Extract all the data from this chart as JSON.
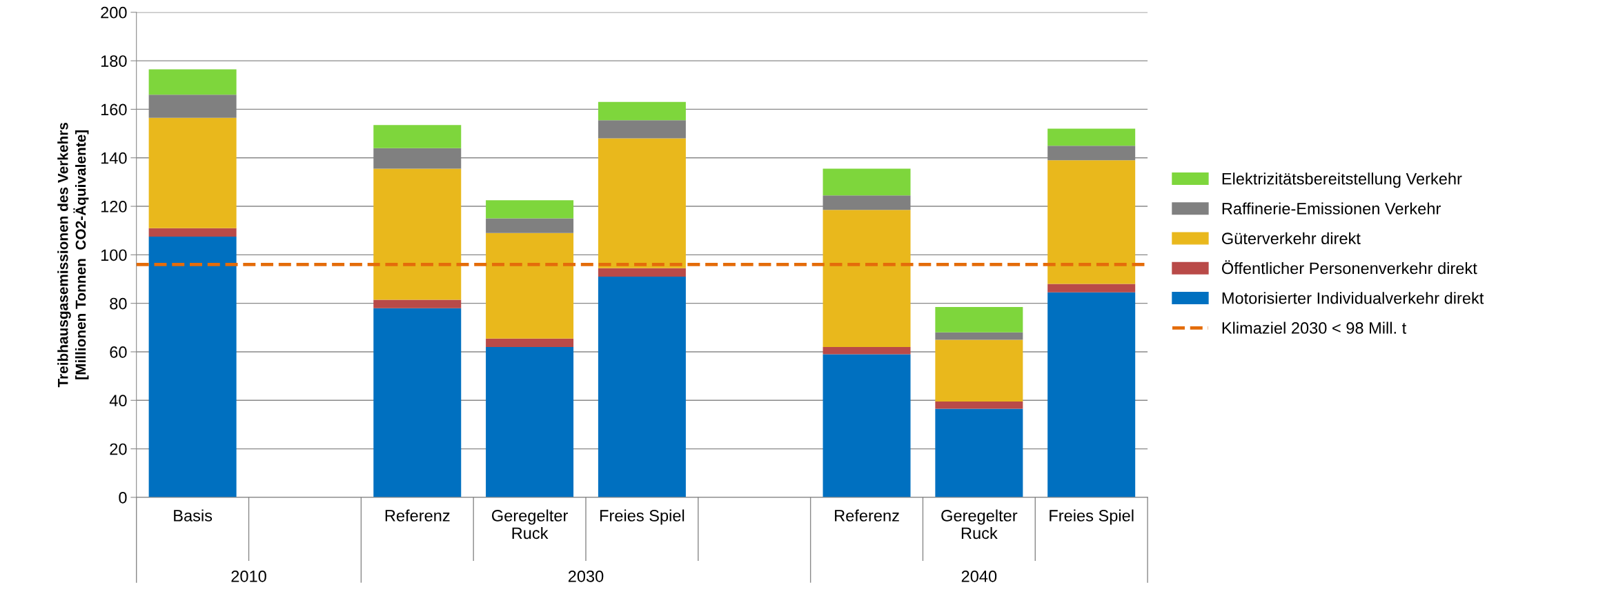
{
  "chart_data": {
    "type": "bar",
    "stacked": true,
    "ylabel": "Treibhausgasemissionen des Verkehrs\n[Millionen Tonnen  CO2-Äquivalente]",
    "categories": [
      "Basis",
      null,
      "Referenz",
      "Geregelter\nRuck",
      "Freies Spiel",
      null,
      "Referenz",
      "Geregelter\nRuck",
      "Freies Spiel"
    ],
    "annotations": [
      "2010",
      "2030",
      "2040"
    ],
    "series": [
      {
        "name": "Motorisierter Individualverkehr direkt",
        "color": "#0070c0",
        "values": [
          107.5,
          null,
          78,
          62,
          91,
          null,
          59,
          36.5,
          84.5
        ]
      },
      {
        "name": "Öffentlicher Personenverkehr direkt",
        "color": "#b94a48",
        "values": [
          3.5,
          null,
          3.5,
          3.5,
          3.5,
          null,
          3,
          3,
          3.5
        ]
      },
      {
        "name": "Güterverkehr direkt",
        "color": "#e9b81c",
        "values": [
          45.5,
          null,
          54,
          43.5,
          53.5,
          null,
          56.5,
          25.5,
          51
        ]
      },
      {
        "name": "Raffinerie-Emissionen Verkehr",
        "color": "#808080",
        "values": [
          9.5,
          null,
          8.5,
          6,
          7.5,
          null,
          6,
          3,
          6
        ]
      },
      {
        "name": "Elektrizitätsbereitstellung Verkehr",
        "color": "#7ed63c",
        "values": [
          10.5,
          null,
          9.5,
          7.5,
          7.5,
          null,
          11,
          10.5,
          7
        ]
      }
    ],
    "ref_lines": [
      {
        "axis": "y",
        "value": 96,
        "label": "Klimaziel 2030 < 98 Mill. t",
        "color": "#e46c0a",
        "line_style": "dashed"
      }
    ],
    "ylim": [
      0,
      200
    ],
    "yticks": [
      0,
      20,
      40,
      60,
      80,
      100,
      120,
      140,
      160,
      180,
      200
    ],
    "grid": "y",
    "legend": "right"
  }
}
